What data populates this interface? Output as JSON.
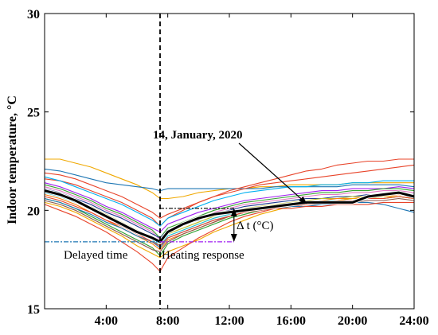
{
  "chart_data": {
    "type": "line",
    "title": "",
    "xlabel": "",
    "ylabel": "Indoor temperature, °C",
    "xlim": [
      0,
      24
    ],
    "ylim": [
      15,
      30
    ],
    "x_ticks": [
      4,
      8,
      12,
      16,
      20,
      24
    ],
    "x_tick_labels": [
      "4:00",
      "8:00",
      "12:00",
      "16:00",
      "20:00",
      "24:00"
    ],
    "y_ticks": [
      15,
      20,
      25,
      30
    ],
    "y_tick_labels": [
      "15",
      "20",
      "25",
      "30"
    ],
    "grid": false,
    "legend": "none",
    "x": [
      0,
      1,
      2,
      3,
      4,
      5,
      6,
      7,
      7.5,
      8,
      9,
      10,
      11,
      12,
      13,
      14,
      15,
      16,
      17,
      18,
      19,
      20,
      21,
      22,
      23,
      24
    ],
    "series": [
      {
        "color": "#f0a800",
        "values": [
          22.6,
          22.6,
          22.4,
          22.2,
          21.9,
          21.6,
          21.3,
          20.9,
          20.6,
          20.6,
          20.7,
          20.9,
          21.0,
          21.1,
          21.1,
          21.2,
          21.2,
          21.3,
          21.3,
          21.3,
          21.3,
          21.4,
          21.4,
          21.4,
          21.4,
          21.4
        ]
      },
      {
        "color": "#1f77b4",
        "values": [
          22.1,
          22.0,
          21.8,
          21.6,
          21.4,
          21.3,
          21.2,
          21.1,
          21.0,
          21.1,
          21.1,
          21.1,
          21.1,
          21.1,
          21.1,
          21.1,
          21.2,
          21.2,
          21.2,
          21.2,
          21.2,
          21.3,
          21.3,
          21.3,
          21.3,
          21.2
        ]
      },
      {
        "color": "#e8442a",
        "values": [
          21.9,
          21.8,
          21.6,
          21.3,
          21.0,
          20.7,
          20.3,
          19.9,
          19.6,
          19.8,
          20.1,
          20.4,
          20.7,
          20.9,
          21.1,
          21.3,
          21.4,
          21.5,
          21.6,
          21.7,
          21.8,
          21.9,
          22.0,
          22.1,
          22.2,
          22.3
        ]
      },
      {
        "color": "#e8442a",
        "values": [
          21.6,
          21.5,
          21.3,
          21.0,
          20.7,
          20.4,
          20.0,
          19.6,
          19.2,
          19.6,
          20.0,
          20.4,
          20.7,
          21.0,
          21.2,
          21.4,
          21.6,
          21.8,
          22.0,
          22.1,
          22.3,
          22.4,
          22.5,
          22.5,
          22.6,
          22.6
        ]
      },
      {
        "color": "#00b0f0",
        "values": [
          21.7,
          21.5,
          21.2,
          20.9,
          20.6,
          20.3,
          19.9,
          19.5,
          19.2,
          19.6,
          19.9,
          20.2,
          20.5,
          20.7,
          20.9,
          21.0,
          21.1,
          21.2,
          21.2,
          21.3,
          21.3,
          21.4,
          21.4,
          21.5,
          21.5,
          21.5
        ]
      },
      {
        "color": "#a020f0",
        "values": [
          21.4,
          21.2,
          20.9,
          20.6,
          20.2,
          19.9,
          19.5,
          19.1,
          18.9,
          19.3,
          19.6,
          19.9,
          20.1,
          20.3,
          20.5,
          20.6,
          20.7,
          20.8,
          20.9,
          21.0,
          21.0,
          21.1,
          21.1,
          21.1,
          21.2,
          21.1
        ]
      },
      {
        "color": "#33a02c",
        "values": [
          21.3,
          21.1,
          20.8,
          20.5,
          20.1,
          19.8,
          19.4,
          19.0,
          18.6,
          19.1,
          19.4,
          19.7,
          20.0,
          20.2,
          20.4,
          20.5,
          20.6,
          20.7,
          20.8,
          20.9,
          20.9,
          21.0,
          21.0,
          21.1,
          21.1,
          21.0
        ]
      },
      {
        "color": "#e377c2",
        "values": [
          21.2,
          21.0,
          20.7,
          20.4,
          20.0,
          19.7,
          19.3,
          18.9,
          18.5,
          19.0,
          19.3,
          19.6,
          19.9,
          20.1,
          20.3,
          20.4,
          20.5,
          20.6,
          20.7,
          20.8,
          20.8,
          20.9,
          20.9,
          21.0,
          21.0,
          20.9
        ]
      },
      {
        "color": "#1f3a93",
        "values": [
          21.1,
          20.9,
          20.6,
          20.3,
          19.9,
          19.6,
          19.2,
          18.8,
          18.6,
          19.0,
          19.3,
          19.5,
          19.8,
          20.0,
          20.2,
          20.3,
          20.4,
          20.5,
          20.6,
          20.6,
          20.7,
          20.7,
          20.8,
          20.8,
          20.9,
          20.8
        ]
      },
      {
        "color": "#bcbd22",
        "values": [
          21.0,
          20.8,
          20.5,
          20.2,
          19.8,
          19.4,
          19.0,
          18.6,
          18.3,
          18.8,
          19.1,
          19.4,
          19.7,
          19.9,
          20.1,
          20.2,
          20.3,
          20.4,
          20.5,
          20.6,
          20.6,
          20.7,
          20.7,
          20.8,
          20.8,
          20.7
        ]
      },
      {
        "color": "#17becf",
        "values": [
          20.9,
          20.7,
          20.4,
          20.1,
          19.7,
          19.3,
          18.9,
          18.5,
          18.2,
          18.7,
          19.0,
          19.3,
          19.6,
          19.8,
          20.0,
          20.1,
          20.2,
          20.3,
          20.4,
          20.5,
          20.5,
          20.6,
          20.6,
          20.7,
          20.7,
          20.6
        ]
      },
      {
        "color": "#ff7f0e",
        "values": [
          20.8,
          20.6,
          20.3,
          19.9,
          19.5,
          19.1,
          18.7,
          18.3,
          18.0,
          18.5,
          18.8,
          19.1,
          19.4,
          19.7,
          19.9,
          20.1,
          20.2,
          20.3,
          20.4,
          20.5,
          20.6,
          20.6,
          20.7,
          20.7,
          20.8,
          20.7
        ]
      },
      {
        "color": "#2ca02c",
        "values": [
          20.6,
          20.4,
          20.1,
          19.7,
          19.3,
          18.9,
          18.5,
          18.1,
          17.7,
          18.3,
          18.7,
          19.0,
          19.3,
          19.6,
          19.8,
          20.0,
          20.1,
          20.2,
          20.3,
          20.4,
          20.5,
          20.5,
          20.6,
          20.6,
          20.7,
          20.6
        ]
      },
      {
        "color": "#f0a800",
        "values": [
          20.4,
          20.2,
          19.9,
          19.5,
          19.1,
          18.7,
          18.2,
          17.8,
          17.6,
          17.9,
          18.2,
          18.5,
          18.9,
          19.2,
          19.5,
          19.8,
          20.0,
          20.2,
          20.3,
          20.4,
          20.5,
          20.6,
          20.6,
          20.7,
          20.7,
          20.6
        ]
      },
      {
        "color": "#8c564b",
        "values": [
          20.5,
          20.3,
          20.0,
          19.6,
          19.2,
          18.8,
          18.4,
          18.0,
          17.9,
          18.4,
          18.8,
          19.1,
          19.4,
          19.7,
          19.9,
          20.0,
          20.1,
          20.2,
          20.3,
          20.3,
          20.4,
          20.4,
          20.5,
          20.5,
          20.6,
          20.5
        ]
      },
      {
        "color": "#e8442a",
        "values": [
          20.3,
          20.0,
          19.7,
          19.3,
          18.9,
          18.4,
          17.9,
          17.3,
          16.9,
          17.6,
          18.1,
          18.6,
          19.0,
          19.4,
          19.7,
          19.9,
          20.1,
          20.2,
          20.3,
          20.4,
          20.5,
          20.5,
          20.6,
          20.6,
          20.7,
          20.6
        ]
      },
      {
        "color": "#1f77b4",
        "values": [
          20.6,
          20.4,
          20.1,
          19.8,
          19.4,
          19.1,
          18.7,
          18.4,
          18.1,
          18.6,
          18.9,
          19.2,
          19.5,
          19.7,
          19.9,
          20.0,
          20.1,
          20.2,
          20.2,
          20.3,
          20.3,
          20.4,
          20.4,
          20.3,
          20.1,
          19.9
        ]
      },
      {
        "color": "#e8442a",
        "values": [
          20.7,
          20.5,
          20.2,
          19.9,
          19.5,
          19.2,
          18.8,
          18.4,
          18.2,
          18.6,
          18.9,
          19.2,
          19.5,
          19.7,
          19.9,
          20.0,
          20.1,
          20.1,
          20.2,
          20.2,
          20.3,
          20.3,
          20.3,
          20.4,
          20.4,
          20.4
        ]
      },
      {
        "name": "14, January, 2020",
        "color": "#000000",
        "bold": true,
        "values": [
          21.0,
          20.8,
          20.5,
          20.1,
          19.7,
          19.3,
          18.9,
          18.6,
          18.4,
          18.9,
          19.3,
          19.6,
          19.8,
          19.9,
          20.0,
          20.1,
          20.2,
          20.3,
          20.4,
          20.4,
          20.4,
          20.4,
          20.7,
          20.8,
          20.9,
          20.7
        ]
      }
    ],
    "annotations": {
      "heating_start_x": 7.5,
      "lower_ref_y": 18.4,
      "upper_ref_y": 20.1,
      "delta_x": 12.3,
      "callout_text": "14, January, 2020",
      "callout_target": [
        17.0,
        20.35
      ],
      "delayed_label": "Delayed time",
      "heating_label": "Heating response",
      "delta_label": "Δ t (°C)"
    }
  }
}
